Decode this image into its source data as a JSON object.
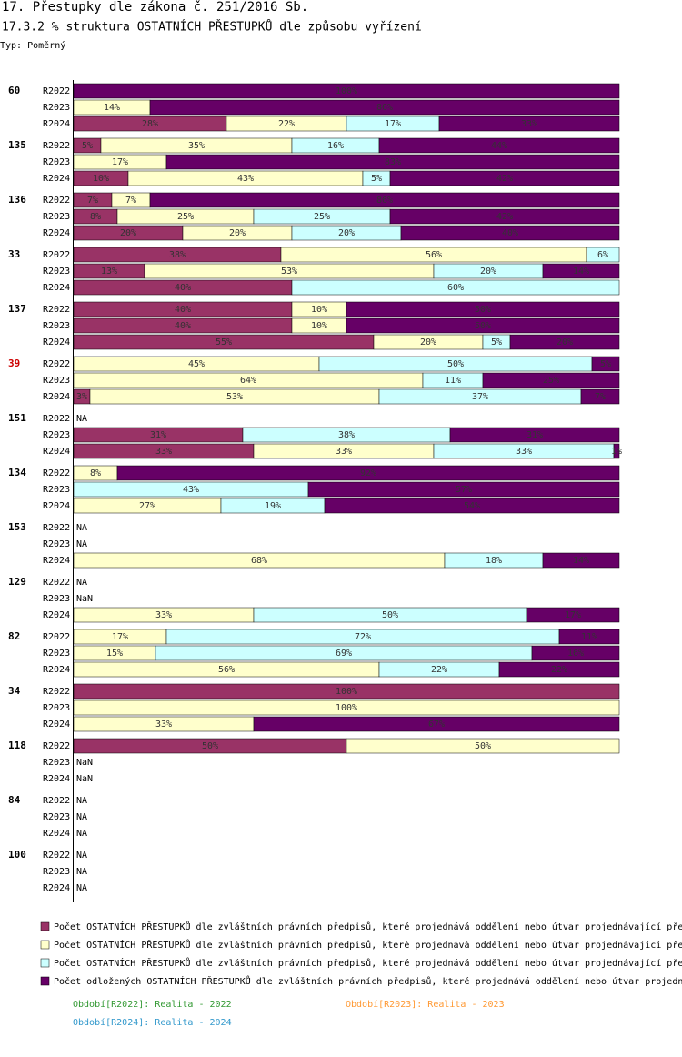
{
  "chart_data": {
    "type": "stacked-percent-bar-groups",
    "title": "17. Přestupky dle zákona č. 251/2016 Sb.",
    "subtitle": "17.3.2 % struktura OSTATNÍCH PŘESTUPKŮ dle způsobu vyřízení",
    "chart_type_label": "Typ: Poměrný",
    "xlim": [
      0,
      100
    ],
    "series": [
      {
        "name": "Počet OSTATNÍCH PŘESTUPKŮ dle zvláštních právních předpisů, které projednává oddělení nebo útvar projednávající pře",
        "color": "#993366"
      },
      {
        "name": "Počet OSTATNÍCH PŘESTUPKŮ dle zvláštních právních předpisů, které projednává oddělení nebo útvar projednávající pře",
        "color": "#ffffcc"
      },
      {
        "name": "Počet OSTATNÍCH PŘESTUPKŮ dle zvláštních právních předpisů, které projednává oddělení nebo útvar projednávající pře",
        "color": "#ccffff"
      },
      {
        "name": "Počet odložených OSTATNÍCH PŘESTUPKŮ dle zvláštních právních předpisů, které projednává oddělení nebo útvar projedn",
        "color": "#660066"
      }
    ],
    "periods": [
      {
        "label": "Období[R2022]: Realita - 2022",
        "color": "#339933"
      },
      {
        "label": "Období[R2023]: Realita - 2023",
        "color": "#ff9933"
      },
      {
        "label": "Období[R2024]: Realita - 2024",
        "color": "#3399cc"
      }
    ],
    "groups": [
      {
        "name": "60",
        "rows": [
          {
            "period": "R2022",
            "values": [
              0,
              0,
              0,
              100
            ],
            "value_labels": [
              null,
              null,
              null,
              "100%"
            ]
          },
          {
            "period": "R2023",
            "values": [
              0,
              14,
              0,
              86
            ],
            "value_labels": [
              null,
              "14%",
              null,
              "86%"
            ]
          },
          {
            "period": "R2024",
            "values": [
              28,
              22,
              17,
              33
            ],
            "value_labels": [
              "28%",
              "22%",
              "17%",
              "33%"
            ]
          }
        ]
      },
      {
        "name": "135",
        "rows": [
          {
            "period": "R2022",
            "values": [
              5,
              35,
              16,
              44
            ],
            "value_labels": [
              "5%",
              "35%",
              "16%",
              "44%"
            ]
          },
          {
            "period": "R2023",
            "values": [
              0,
              17,
              0,
              83
            ],
            "value_labels": [
              null,
              "17%",
              null,
              "83%"
            ]
          },
          {
            "period": "R2024",
            "values": [
              10,
              43,
              5,
              42
            ],
            "value_labels": [
              "10%",
              "43%",
              "5%",
              "42%"
            ]
          }
        ]
      },
      {
        "name": "136",
        "rows": [
          {
            "period": "R2022",
            "values": [
              7,
              7,
              0,
              86
            ],
            "value_labels": [
              "7%",
              "7%",
              null,
              "86%"
            ]
          },
          {
            "period": "R2023",
            "values": [
              8,
              25,
              25,
              42
            ],
            "value_labels": [
              "8%",
              "25%",
              "25%",
              "42%"
            ]
          },
          {
            "period": "R2024",
            "values": [
              20,
              20,
              20,
              40
            ],
            "value_labels": [
              "20%",
              "20%",
              "20%",
              "40%"
            ]
          }
        ]
      },
      {
        "name": "33",
        "rows": [
          {
            "period": "R2022",
            "values": [
              38,
              56,
              6,
              0
            ],
            "value_labels": [
              "38%",
              "56%",
              "6%",
              null
            ]
          },
          {
            "period": "R2023",
            "values": [
              13,
              53,
              20,
              14
            ],
            "value_labels": [
              "13%",
              "53%",
              "20%",
              "14%"
            ]
          },
          {
            "period": "R2024",
            "values": [
              40,
              0,
              60,
              0
            ],
            "value_labels": [
              "40%",
              null,
              "60%",
              null
            ]
          }
        ]
      },
      {
        "name": "137",
        "rows": [
          {
            "period": "R2022",
            "values": [
              40,
              10,
              0,
              50
            ],
            "value_labels": [
              "40%",
              "10%",
              null,
              "50%"
            ]
          },
          {
            "period": "R2023",
            "values": [
              40,
              10,
              0,
              50
            ],
            "value_labels": [
              "40%",
              "10%",
              null,
              "50%"
            ]
          },
          {
            "period": "R2024",
            "values": [
              55,
              20,
              5,
              20
            ],
            "value_labels": [
              "55%",
              "20%",
              "5%",
              "20%"
            ]
          }
        ]
      },
      {
        "name": "39",
        "color": "#cc0000",
        "rows": [
          {
            "period": "R2022",
            "values": [
              0,
              45,
              50,
              5
            ],
            "value_labels": [
              null,
              "45%",
              "50%",
              "5%"
            ]
          },
          {
            "period": "R2023",
            "values": [
              0,
              64,
              11,
              25
            ],
            "value_labels": [
              null,
              "64%",
              "11%",
              "25%"
            ]
          },
          {
            "period": "R2024",
            "values": [
              3,
              53,
              37,
              7
            ],
            "value_labels": [
              "3%",
              "53%",
              "37%",
              "7%"
            ]
          }
        ]
      },
      {
        "name": "151",
        "rows": [
          {
            "period": "R2022",
            "note": "NA"
          },
          {
            "period": "R2023",
            "values": [
              31,
              0,
              38,
              31
            ],
            "value_labels": [
              "31%",
              null,
              "38%",
              "31%"
            ]
          },
          {
            "period": "R2024",
            "values": [
              33,
              33,
              33,
              1
            ],
            "value_labels": [
              "33%",
              "33%",
              "33%",
              "1%"
            ]
          }
        ]
      },
      {
        "name": "134",
        "rows": [
          {
            "period": "R2022",
            "values": [
              0,
              8,
              0,
              92
            ],
            "value_labels": [
              null,
              "8%",
              null,
              "92%"
            ]
          },
          {
            "period": "R2023",
            "values": [
              0,
              0,
              43,
              57
            ],
            "value_labels": [
              null,
              null,
              "43%",
              "57%"
            ]
          },
          {
            "period": "R2024",
            "values": [
              0,
              27,
              19,
              54
            ],
            "value_labels": [
              null,
              "27%",
              "19%",
              "54%"
            ]
          }
        ]
      },
      {
        "name": "153",
        "rows": [
          {
            "period": "R2022",
            "note": "NA"
          },
          {
            "period": "R2023",
            "note": "NA"
          },
          {
            "period": "R2024",
            "values": [
              0,
              68,
              18,
              14
            ],
            "value_labels": [
              null,
              "68%",
              "18%",
              "14%"
            ]
          }
        ]
      },
      {
        "name": "129",
        "rows": [
          {
            "period": "R2022",
            "note": "NA"
          },
          {
            "period": "R2023",
            "note": "NaN"
          },
          {
            "period": "R2024",
            "values": [
              0,
              33,
              50,
              17
            ],
            "value_labels": [
              null,
              "33%",
              "50%",
              "17%"
            ]
          }
        ]
      },
      {
        "name": "82",
        "rows": [
          {
            "period": "R2022",
            "values": [
              0,
              17,
              72,
              11
            ],
            "value_labels": [
              null,
              "17%",
              "72%",
              "11%"
            ]
          },
          {
            "period": "R2023",
            "values": [
              0,
              15,
              69,
              16
            ],
            "value_labels": [
              null,
              "15%",
              "69%",
              "16%"
            ]
          },
          {
            "period": "R2024",
            "values": [
              0,
              56,
              22,
              22
            ],
            "value_labels": [
              null,
              "56%",
              "22%",
              "22%"
            ]
          }
        ]
      },
      {
        "name": "34",
        "rows": [
          {
            "period": "R2022",
            "values": [
              100,
              0,
              0,
              0
            ],
            "value_labels": [
              "100%",
              null,
              null,
              null
            ]
          },
          {
            "period": "R2023",
            "values": [
              0,
              100,
              0,
              0
            ],
            "value_labels": [
              null,
              "100%",
              null,
              null
            ]
          },
          {
            "period": "R2024",
            "values": [
              0,
              33,
              0,
              67
            ],
            "value_labels": [
              null,
              "33%",
              null,
              "67%"
            ]
          }
        ]
      },
      {
        "name": "118",
        "rows": [
          {
            "period": "R2022",
            "values": [
              50,
              50,
              0,
              0
            ],
            "value_labels": [
              "50%",
              "50%",
              null,
              null
            ]
          },
          {
            "period": "R2023",
            "note": "NaN"
          },
          {
            "period": "R2024",
            "note": "NaN"
          }
        ]
      },
      {
        "name": "84",
        "rows": [
          {
            "period": "R2022",
            "note": "NA"
          },
          {
            "period": "R2023",
            "note": "NA"
          },
          {
            "period": "R2024",
            "note": "NA"
          }
        ]
      },
      {
        "name": "100",
        "rows": [
          {
            "period": "R2022",
            "note": "NA"
          },
          {
            "period": "R2023",
            "note": "NA"
          },
          {
            "period": "R2024",
            "note": "NA"
          }
        ]
      }
    ]
  }
}
